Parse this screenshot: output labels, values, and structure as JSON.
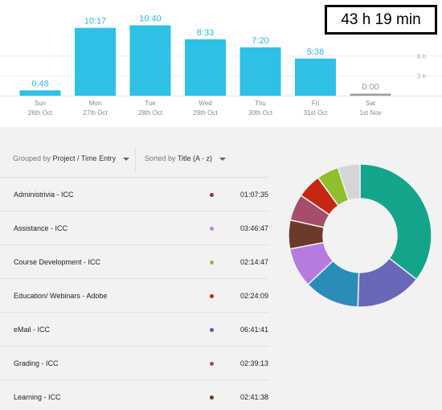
{
  "total": "43 h 19 min",
  "chart_data": {
    "type": "bar",
    "categories": [
      "Sun",
      "Mon",
      "Tue",
      "Wed",
      "Thu",
      "Fri",
      "Sat"
    ],
    "dates": [
      "26th Oct",
      "27th Oct",
      "28th Oct",
      "29th Oct",
      "30th Oct",
      "31st Oct",
      "1st Nov"
    ],
    "values": [
      0.8,
      10.28,
      10.67,
      8.55,
      7.33,
      5.63,
      0
    ],
    "value_labels": [
      "0:48",
      "10:17",
      "10:40",
      "8:33",
      "7:20",
      "5:38",
      "0:00"
    ],
    "y_ticks": [
      "6 h",
      "3 h"
    ],
    "bar_color": "#2fc0e6",
    "zero_bar_color": "#9e9e9e"
  },
  "controls": {
    "group_prefix": "Grouped by",
    "group_value": "Project / Time Entry",
    "sort_prefix": "Sorted by",
    "sort_value": "Title (A - z)"
  },
  "entries": [
    {
      "title": "Administrivia - ICC",
      "time": "01:07:35",
      "color": "#a3294a"
    },
    {
      "title": "Assistance - ICC",
      "time": "03:46:47",
      "color": "#c37ce8"
    },
    {
      "title": "Course Development - ICC",
      "time": "02:14:47",
      "color": "#8fbf2e"
    },
    {
      "title": "Education/ Webinars - Adobe",
      "time": "02:24:09",
      "color": "#c0290f"
    },
    {
      "title": "eMail - ICC",
      "time": "06:41:41",
      "color": "#6058b8"
    },
    {
      "title": "Grading - ICC",
      "time": "02:39:13",
      "color": "#a14a62"
    },
    {
      "title": "Learning - ICC",
      "time": "02:41:38",
      "color": "#6b3a1f"
    }
  ],
  "donut": {
    "segments": [
      {
        "value": 35.5,
        "color": "#12a589"
      },
      {
        "value": 15.0,
        "color": "#6868b8"
      },
      {
        "value": 12.5,
        "color": "#2a8cb8"
      },
      {
        "value": 9.0,
        "color": "#b77ae0"
      },
      {
        "value": 6.5,
        "color": "#6b3a2a"
      },
      {
        "value": 6.0,
        "color": "#a64d6b"
      },
      {
        "value": 5.5,
        "color": "#c4290f"
      },
      {
        "value": 5.0,
        "color": "#8fbf2e"
      },
      {
        "value": 5.0,
        "color": "#d5d5d5"
      }
    ]
  }
}
